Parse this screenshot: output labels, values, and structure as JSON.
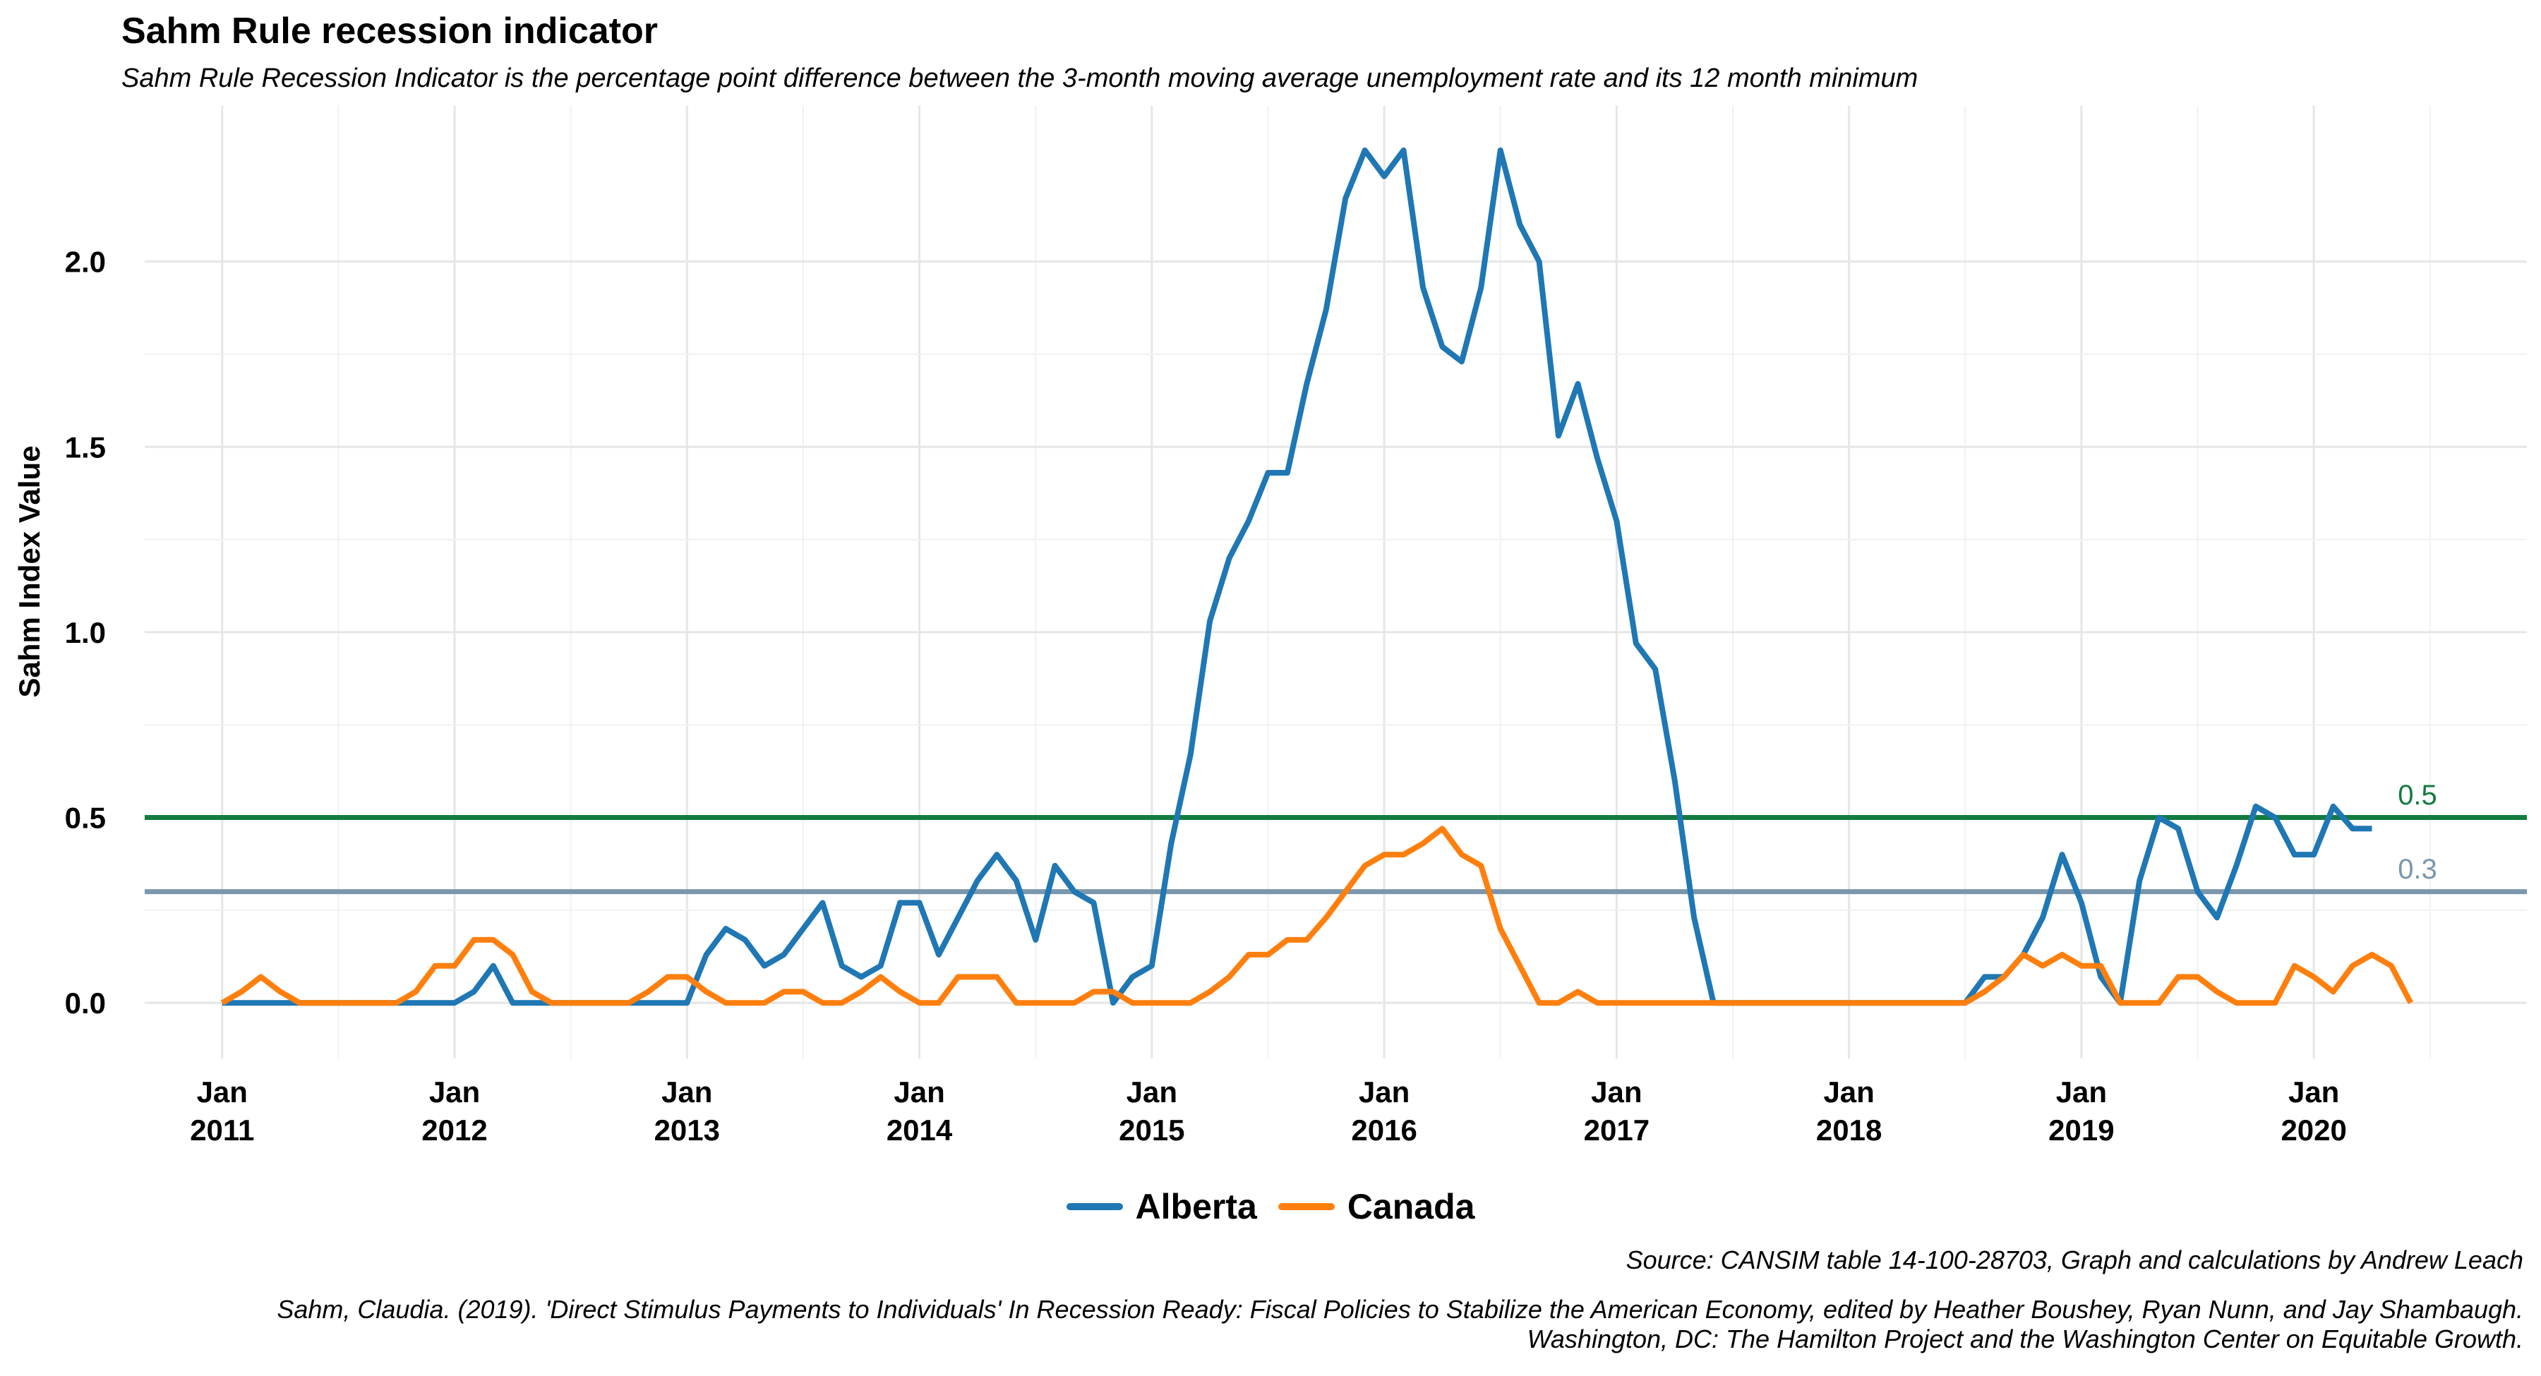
{
  "chart_data": {
    "type": "line",
    "title": "Sahm Rule recession indicator",
    "subtitle": "Sahm Rule Recession Indicator is the percentage point difference between the 3-month moving average unemployment rate and its 12 month minimum",
    "ylabel": "Sahm Index Value",
    "xlabel": "",
    "ylim": [
      -0.15,
      2.42
    ],
    "xlim": [
      "2010-09",
      "2020-12"
    ],
    "y_ticks": [
      0.0,
      0.5,
      1.0,
      1.5,
      2.0
    ],
    "y_tick_labels": [
      "0.0",
      "0.5",
      "1.0",
      "1.5",
      "2.0"
    ],
    "x_ticks": [
      "2011-01",
      "2012-01",
      "2013-01",
      "2014-01",
      "2015-01",
      "2016-01",
      "2017-01",
      "2018-01",
      "2019-01",
      "2020-01"
    ],
    "x_tick_labels": [
      [
        "Jan",
        "2011"
      ],
      [
        "Jan",
        "2012"
      ],
      [
        "Jan",
        "2013"
      ],
      [
        "Jan",
        "2014"
      ],
      [
        "Jan",
        "2015"
      ],
      [
        "Jan",
        "2016"
      ],
      [
        "Jan",
        "2017"
      ],
      [
        "Jan",
        "2018"
      ],
      [
        "Jan",
        "2019"
      ],
      [
        "Jan",
        "2020"
      ]
    ],
    "grid": true,
    "legend_position": "bottom",
    "start_date": "2011-01",
    "frequency": "monthly",
    "series": [
      {
        "name": "Alberta",
        "color": "#1f77b4",
        "values": [
          0,
          0,
          0,
          0,
          0,
          0,
          0,
          0,
          0,
          0,
          0,
          0,
          0,
          0.03,
          0.1,
          0,
          0,
          0,
          0,
          0,
          0,
          0,
          0,
          0,
          0,
          0.13,
          0.2,
          0.17,
          0.1,
          0.13,
          0.2,
          0.27,
          0.1,
          0.07,
          0.1,
          0.27,
          0.27,
          0.13,
          0.23,
          0.33,
          0.4,
          0.33,
          0.17,
          0.37,
          0.3,
          0.27,
          0,
          0.07,
          0.1,
          0.43,
          0.67,
          1.03,
          1.2,
          1.3,
          1.43,
          1.43,
          1.67,
          1.87,
          2.17,
          2.3,
          2.23,
          2.3,
          1.93,
          1.77,
          1.73,
          1.93,
          2.3,
          2.1,
          2.0,
          1.53,
          1.67,
          1.47,
          1.3,
          0.97,
          0.9,
          0.6,
          0.23,
          0,
          0,
          0,
          0,
          0,
          0,
          0,
          0,
          0,
          0,
          0,
          0,
          0,
          0,
          0.07,
          0.07,
          0.13,
          0.23,
          0.4,
          0.27,
          0.07,
          0,
          0.33,
          0.5,
          0.47,
          0.3,
          0.23,
          0.37,
          0.53,
          0.5,
          0.4,
          0.4,
          0.53,
          0.47,
          0.47
        ]
      },
      {
        "name": "Canada",
        "color": "#ff7f0e",
        "values": [
          0,
          0.03,
          0.07,
          0.03,
          0,
          0,
          0,
          0,
          0,
          0,
          0.03,
          0.1,
          0.1,
          0.17,
          0.17,
          0.13,
          0.03,
          0,
          0,
          0,
          0,
          0,
          0.03,
          0.07,
          0.07,
          0.03,
          0,
          0,
          0,
          0.03,
          0.03,
          0,
          0,
          0.03,
          0.07,
          0.03,
          0,
          0,
          0.07,
          0.07,
          0.07,
          0,
          0,
          0,
          0,
          0.03,
          0.03,
          0,
          0,
          0,
          0,
          0.03,
          0.07,
          0.13,
          0.13,
          0.17,
          0.17,
          0.23,
          0.3,
          0.37,
          0.4,
          0.4,
          0.43,
          0.47,
          0.4,
          0.37,
          0.2,
          0.1,
          0,
          0,
          0.03,
          0,
          0,
          0,
          0,
          0,
          0,
          0,
          0,
          0,
          0,
          0,
          0,
          0,
          0,
          0,
          0,
          0,
          0,
          0,
          0,
          0.03,
          0.07,
          0.13,
          0.1,
          0.13,
          0.1,
          0.1,
          0,
          0,
          0,
          0.07,
          0.07,
          0.03,
          0,
          0,
          0,
          0.1,
          0.07,
          0.03,
          0.1,
          0.13,
          0.1,
          0
        ]
      }
    ],
    "reference_lines": [
      {
        "value": 0.5,
        "label": "0.5",
        "color": "#137b3f"
      },
      {
        "value": 0.3,
        "label": "0.3",
        "color": "#7a97ad"
      }
    ]
  },
  "source_text": "Source: CANSIM table 14-100-28703, Graph and calculations by Andrew Leach",
  "citation_lines": [
    "Sahm, Claudia. (2019). 'Direct Stimulus Payments to Individuals' In Recession Ready: Fiscal Policies to Stabilize the American Economy, edited by Heather Boushey, Ryan Nunn, and Jay Shambaugh.",
    "Washington, DC: The Hamilton Project and the Washington Center on Equitable Growth."
  ]
}
